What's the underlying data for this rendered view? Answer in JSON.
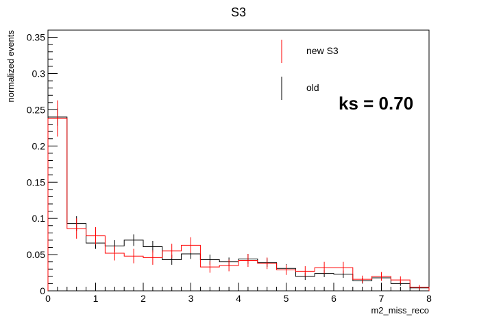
{
  "chart_data": {
    "type": "histogram",
    "title": "S3",
    "xlabel": "m2_miss_reco",
    "ylabel": "normalized events",
    "xlim": [
      0,
      8
    ],
    "ylim": [
      0,
      0.36
    ],
    "bin_width": 0.4,
    "x_ticks": [
      "0",
      "1",
      "2",
      "3",
      "4",
      "5",
      "6",
      "7",
      "8"
    ],
    "y_ticks": [
      "0",
      "0.05",
      "0.1",
      "0.15",
      "0.2",
      "0.25",
      "0.3",
      "0.35"
    ],
    "legend_position": "top-right",
    "annotation": "ks = 0.70",
    "series": [
      {
        "name": "new S3",
        "color": "#ff0000",
        "values": [
          0.238,
          0.086,
          0.076,
          0.052,
          0.048,
          0.046,
          0.055,
          0.063,
          0.033,
          0.035,
          0.042,
          0.038,
          0.029,
          0.027,
          0.032,
          0.032,
          0.016,
          0.02,
          0.015,
          0.005
        ],
        "errors": [
          0.025,
          0.014,
          0.012,
          0.01,
          0.01,
          0.01,
          0.01,
          0.011,
          0.008,
          0.008,
          0.009,
          0.008,
          0.007,
          0.007,
          0.008,
          0.008,
          0.005,
          0.006,
          0.005,
          0.003
        ]
      },
      {
        "name": "old",
        "color": "#000000",
        "values": [
          0.24,
          0.093,
          0.066,
          0.062,
          0.07,
          0.061,
          0.043,
          0.051,
          0.043,
          0.04,
          0.044,
          0.039,
          0.031,
          0.02,
          0.024,
          0.023,
          0.014,
          0.018,
          0.01,
          0.004
        ],
        "errors": [
          0.012,
          0.01,
          0.008,
          0.008,
          0.008,
          0.008,
          0.007,
          0.007,
          0.007,
          0.006,
          0.007,
          0.006,
          0.006,
          0.005,
          0.005,
          0.005,
          0.004,
          0.004,
          0.003,
          0.002
        ]
      }
    ]
  }
}
